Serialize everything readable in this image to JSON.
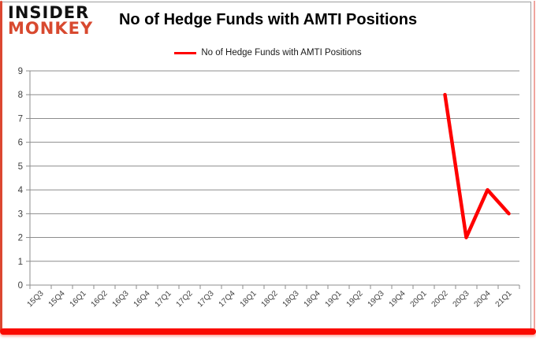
{
  "logo": {
    "line1": "INSIDER",
    "line2": "MONKEY"
  },
  "header": {
    "title": "No of Hedge Funds with AMTI Positions"
  },
  "legend": {
    "label": "No of Hedge Funds with AMTI Positions"
  },
  "colors": {
    "line": "#ff0000",
    "grid": "#8c8c8c",
    "axis": "#8c8c8c",
    "tick_label": "#3f3f3f",
    "logo_red": "#d8492f",
    "frame_red": "#fa0a00",
    "card_border": "#9d9d9d"
  },
  "chart_data": {
    "type": "line",
    "title": "No of Hedge Funds with AMTI Positions",
    "categories": [
      "15Q3",
      "15Q4",
      "16Q1",
      "16Q2",
      "16Q3",
      "16Q4",
      "17Q1",
      "17Q2",
      "17Q3",
      "17Q4",
      "18Q1",
      "18Q2",
      "18Q3",
      "18Q4",
      "19Q1",
      "19Q2",
      "19Q3",
      "19Q4",
      "20Q1",
      "20Q2",
      "20Q3",
      "20Q4",
      "21Q1"
    ],
    "series": [
      {
        "name": "No of Hedge Funds with AMTI Positions",
        "color": "#ff0000",
        "values": [
          null,
          null,
          null,
          null,
          null,
          null,
          null,
          null,
          null,
          null,
          null,
          null,
          null,
          null,
          null,
          null,
          null,
          null,
          null,
          8,
          2,
          4,
          3
        ]
      }
    ],
    "xlabel": "",
    "ylabel": "",
    "ylim": [
      0,
      9
    ],
    "ytick_step": 1,
    "grid": true,
    "legend_position": "top-center"
  }
}
